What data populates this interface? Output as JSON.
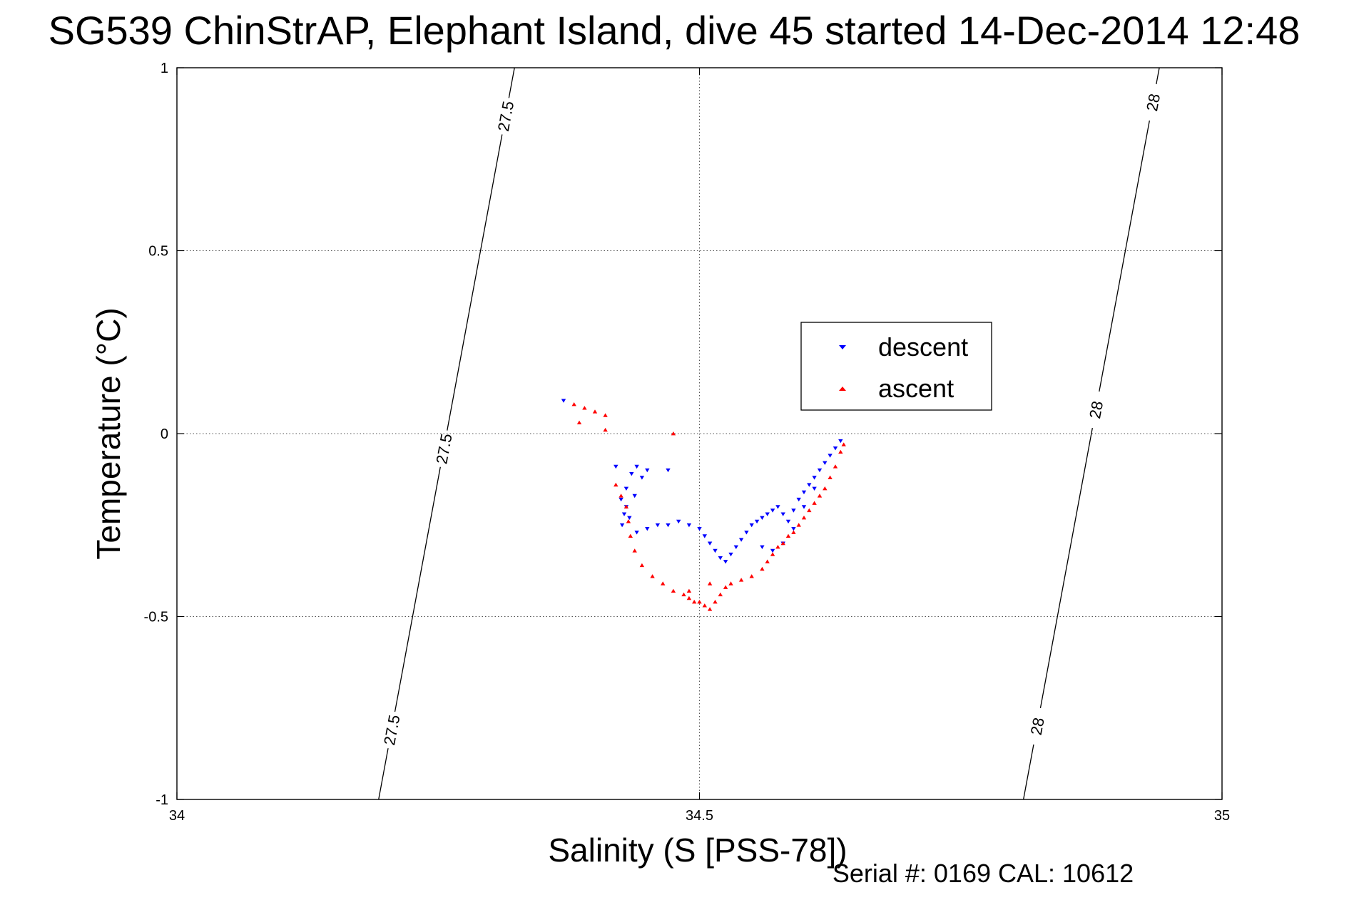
{
  "chart_data": {
    "type": "scatter",
    "title": "SG539 ChinStrAP, Elephant Island, dive 45 started 14-Dec-2014 12:48",
    "xlabel": "Salinity (S [PSS-78])",
    "ylabel": "Temperature (°C)",
    "xlim": [
      34,
      35
    ],
    "ylim": [
      -1,
      1
    ],
    "xticks": [
      34,
      34.5,
      35
    ],
    "xtick_labels": [
      "34",
      "34.5",
      "35"
    ],
    "yticks": [
      -1,
      -0.5,
      0,
      0.5,
      1
    ],
    "ytick_labels": [
      "-1",
      "-0.5",
      "0",
      "0.5",
      "1"
    ],
    "grid": true,
    "legend_position": "upper-right-inside",
    "footer": "Serial #: 0169 CAL: 10612",
    "contours": [
      {
        "label": "27.5",
        "color": "#000000",
        "points": [
          [
            34.193,
            -1.0
          ],
          [
            34.323,
            1.0
          ]
        ],
        "label_positions": [
          [
            34.205,
            -0.81
          ],
          [
            34.253,
            -0.04
          ],
          [
            34.31,
            0.87
          ]
        ]
      },
      {
        "label": "28",
        "color": "#000000",
        "points": [
          [
            34.81,
            -1.0
          ],
          [
            34.94,
            1.0
          ]
        ],
        "label_positions": [
          [
            34.823,
            -0.8
          ],
          [
            34.87,
            0.07
          ],
          [
            34.925,
            0.91
          ]
        ]
      }
    ],
    "series": [
      {
        "name": "descent",
        "color": "#0000ff",
        "marker": "triangle-down",
        "points": [
          [
            34.37,
            0.09
          ],
          [
            34.42,
            -0.09
          ],
          [
            34.44,
            -0.09
          ],
          [
            34.45,
            -0.1
          ],
          [
            34.47,
            -0.1
          ],
          [
            34.435,
            -0.11
          ],
          [
            34.445,
            -0.12
          ],
          [
            34.43,
            -0.15
          ],
          [
            34.438,
            -0.17
          ],
          [
            34.425,
            -0.18
          ],
          [
            34.43,
            -0.2
          ],
          [
            34.428,
            -0.22
          ],
          [
            34.433,
            -0.23
          ],
          [
            34.426,
            -0.25
          ],
          [
            34.44,
            -0.27
          ],
          [
            34.45,
            -0.26
          ],
          [
            34.46,
            -0.25
          ],
          [
            34.47,
            -0.25
          ],
          [
            34.48,
            -0.24
          ],
          [
            34.49,
            -0.25
          ],
          [
            34.5,
            -0.26
          ],
          [
            34.505,
            -0.28
          ],
          [
            34.51,
            -0.3
          ],
          [
            34.515,
            -0.32
          ],
          [
            34.52,
            -0.34
          ],
          [
            34.525,
            -0.35
          ],
          [
            34.53,
            -0.33
          ],
          [
            34.535,
            -0.31
          ],
          [
            34.54,
            -0.29
          ],
          [
            34.545,
            -0.27
          ],
          [
            34.55,
            -0.25
          ],
          [
            34.555,
            -0.24
          ],
          [
            34.56,
            -0.23
          ],
          [
            34.565,
            -0.22
          ],
          [
            34.57,
            -0.21
          ],
          [
            34.575,
            -0.2
          ],
          [
            34.58,
            -0.22
          ],
          [
            34.585,
            -0.24
          ],
          [
            34.59,
            -0.26
          ],
          [
            34.58,
            -0.3
          ],
          [
            34.57,
            -0.32
          ],
          [
            34.56,
            -0.31
          ],
          [
            34.595,
            -0.18
          ],
          [
            34.6,
            -0.16
          ],
          [
            34.605,
            -0.14
          ],
          [
            34.61,
            -0.12
          ],
          [
            34.615,
            -0.1
          ],
          [
            34.62,
            -0.08
          ],
          [
            34.625,
            -0.06
          ],
          [
            34.63,
            -0.04
          ],
          [
            34.635,
            -0.02
          ],
          [
            34.6,
            -0.2
          ],
          [
            34.59,
            -0.21
          ],
          [
            34.61,
            -0.15
          ]
        ]
      },
      {
        "name": "ascent",
        "color": "#ff0000",
        "marker": "triangle-up",
        "points": [
          [
            34.38,
            0.08
          ],
          [
            34.39,
            0.07
          ],
          [
            34.4,
            0.06
          ],
          [
            34.41,
            0.05
          ],
          [
            34.385,
            0.03
          ],
          [
            34.41,
            0.01
          ],
          [
            34.475,
            0.0
          ],
          [
            34.42,
            -0.14
          ],
          [
            34.425,
            -0.17
          ],
          [
            34.43,
            -0.2
          ],
          [
            34.432,
            -0.24
          ],
          [
            34.434,
            -0.28
          ],
          [
            34.438,
            -0.32
          ],
          [
            34.445,
            -0.36
          ],
          [
            34.455,
            -0.39
          ],
          [
            34.465,
            -0.41
          ],
          [
            34.475,
            -0.43
          ],
          [
            34.485,
            -0.44
          ],
          [
            34.49,
            -0.45
          ],
          [
            34.495,
            -0.46
          ],
          [
            34.5,
            -0.46
          ],
          [
            34.505,
            -0.47
          ],
          [
            34.51,
            -0.48
          ],
          [
            34.515,
            -0.46
          ],
          [
            34.52,
            -0.44
          ],
          [
            34.525,
            -0.42
          ],
          [
            34.53,
            -0.41
          ],
          [
            34.54,
            -0.4
          ],
          [
            34.55,
            -0.39
          ],
          [
            34.56,
            -0.37
          ],
          [
            34.565,
            -0.35
          ],
          [
            34.57,
            -0.33
          ],
          [
            34.575,
            -0.31
          ],
          [
            34.58,
            -0.3
          ],
          [
            34.585,
            -0.28
          ],
          [
            34.59,
            -0.27
          ],
          [
            34.595,
            -0.25
          ],
          [
            34.6,
            -0.23
          ],
          [
            34.605,
            -0.21
          ],
          [
            34.61,
            -0.19
          ],
          [
            34.615,
            -0.17
          ],
          [
            34.62,
            -0.15
          ],
          [
            34.625,
            -0.12
          ],
          [
            34.63,
            -0.09
          ],
          [
            34.635,
            -0.05
          ],
          [
            34.638,
            -0.03
          ],
          [
            34.49,
            -0.43
          ],
          [
            34.51,
            -0.41
          ]
        ]
      }
    ]
  }
}
